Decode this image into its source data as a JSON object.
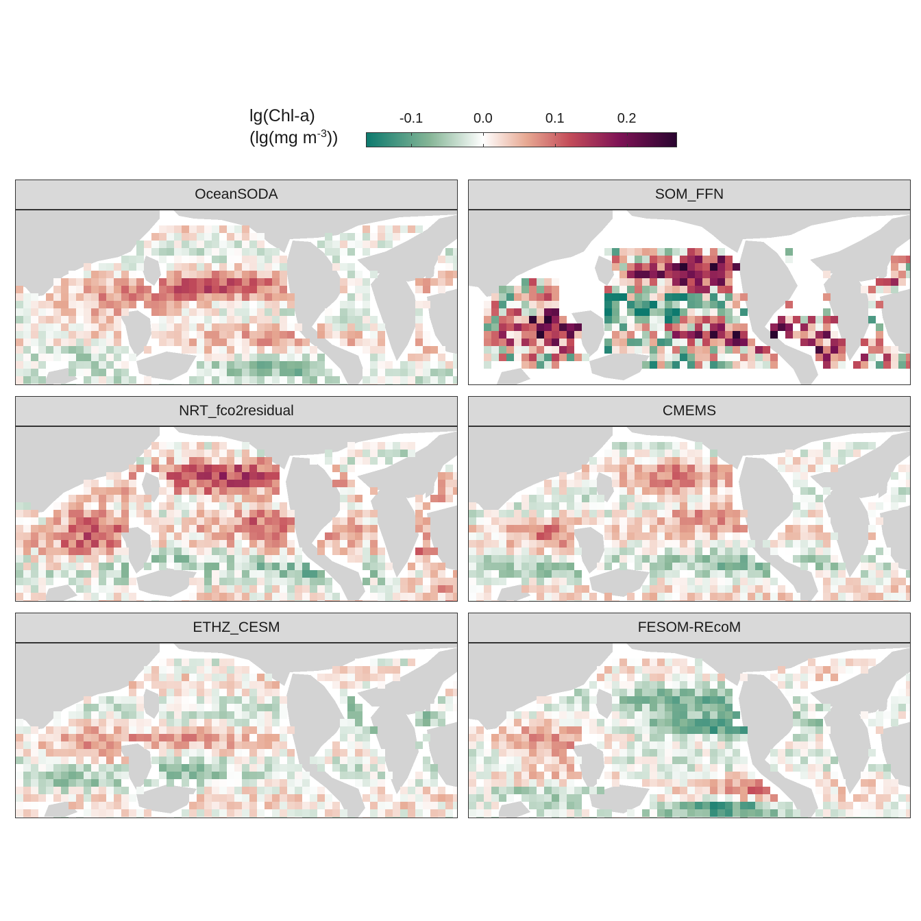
{
  "legend": {
    "title_line1": "lg(Chl-a)",
    "title_line2_prefix": "(lg(mg m",
    "title_line2_sup": "-3",
    "title_line2_suffix": "))",
    "ticks": [
      {
        "value": -0.1,
        "label": "-0.1"
      },
      {
        "value": 0.0,
        "label": "0.0"
      },
      {
        "value": 0.1,
        "label": "0.1"
      },
      {
        "value": 0.2,
        "label": "0.2"
      }
    ],
    "range": [
      -0.163,
      0.27
    ],
    "colormap": [
      "#0d7a6e",
      "#85b596",
      "#ffffff",
      "#e7a993",
      "#c44d5a",
      "#7e1355",
      "#2a0530"
    ],
    "land_color": "#d3d3d3",
    "no_data_color": "#ffffff"
  },
  "panels": [
    {
      "id": "oceansoda",
      "title": "OceanSODA"
    },
    {
      "id": "som-ffn",
      "title": "SOM_FFN"
    },
    {
      "id": "nrt-fco2residual",
      "title": "NRT_fco2residual"
    },
    {
      "id": "cmems",
      "title": "CMEMS"
    },
    {
      "id": "ethz-cesm",
      "title": "ETHZ_CESM"
    },
    {
      "id": "fesom-recom",
      "title": "FESOM-REcoM"
    }
  ]
}
